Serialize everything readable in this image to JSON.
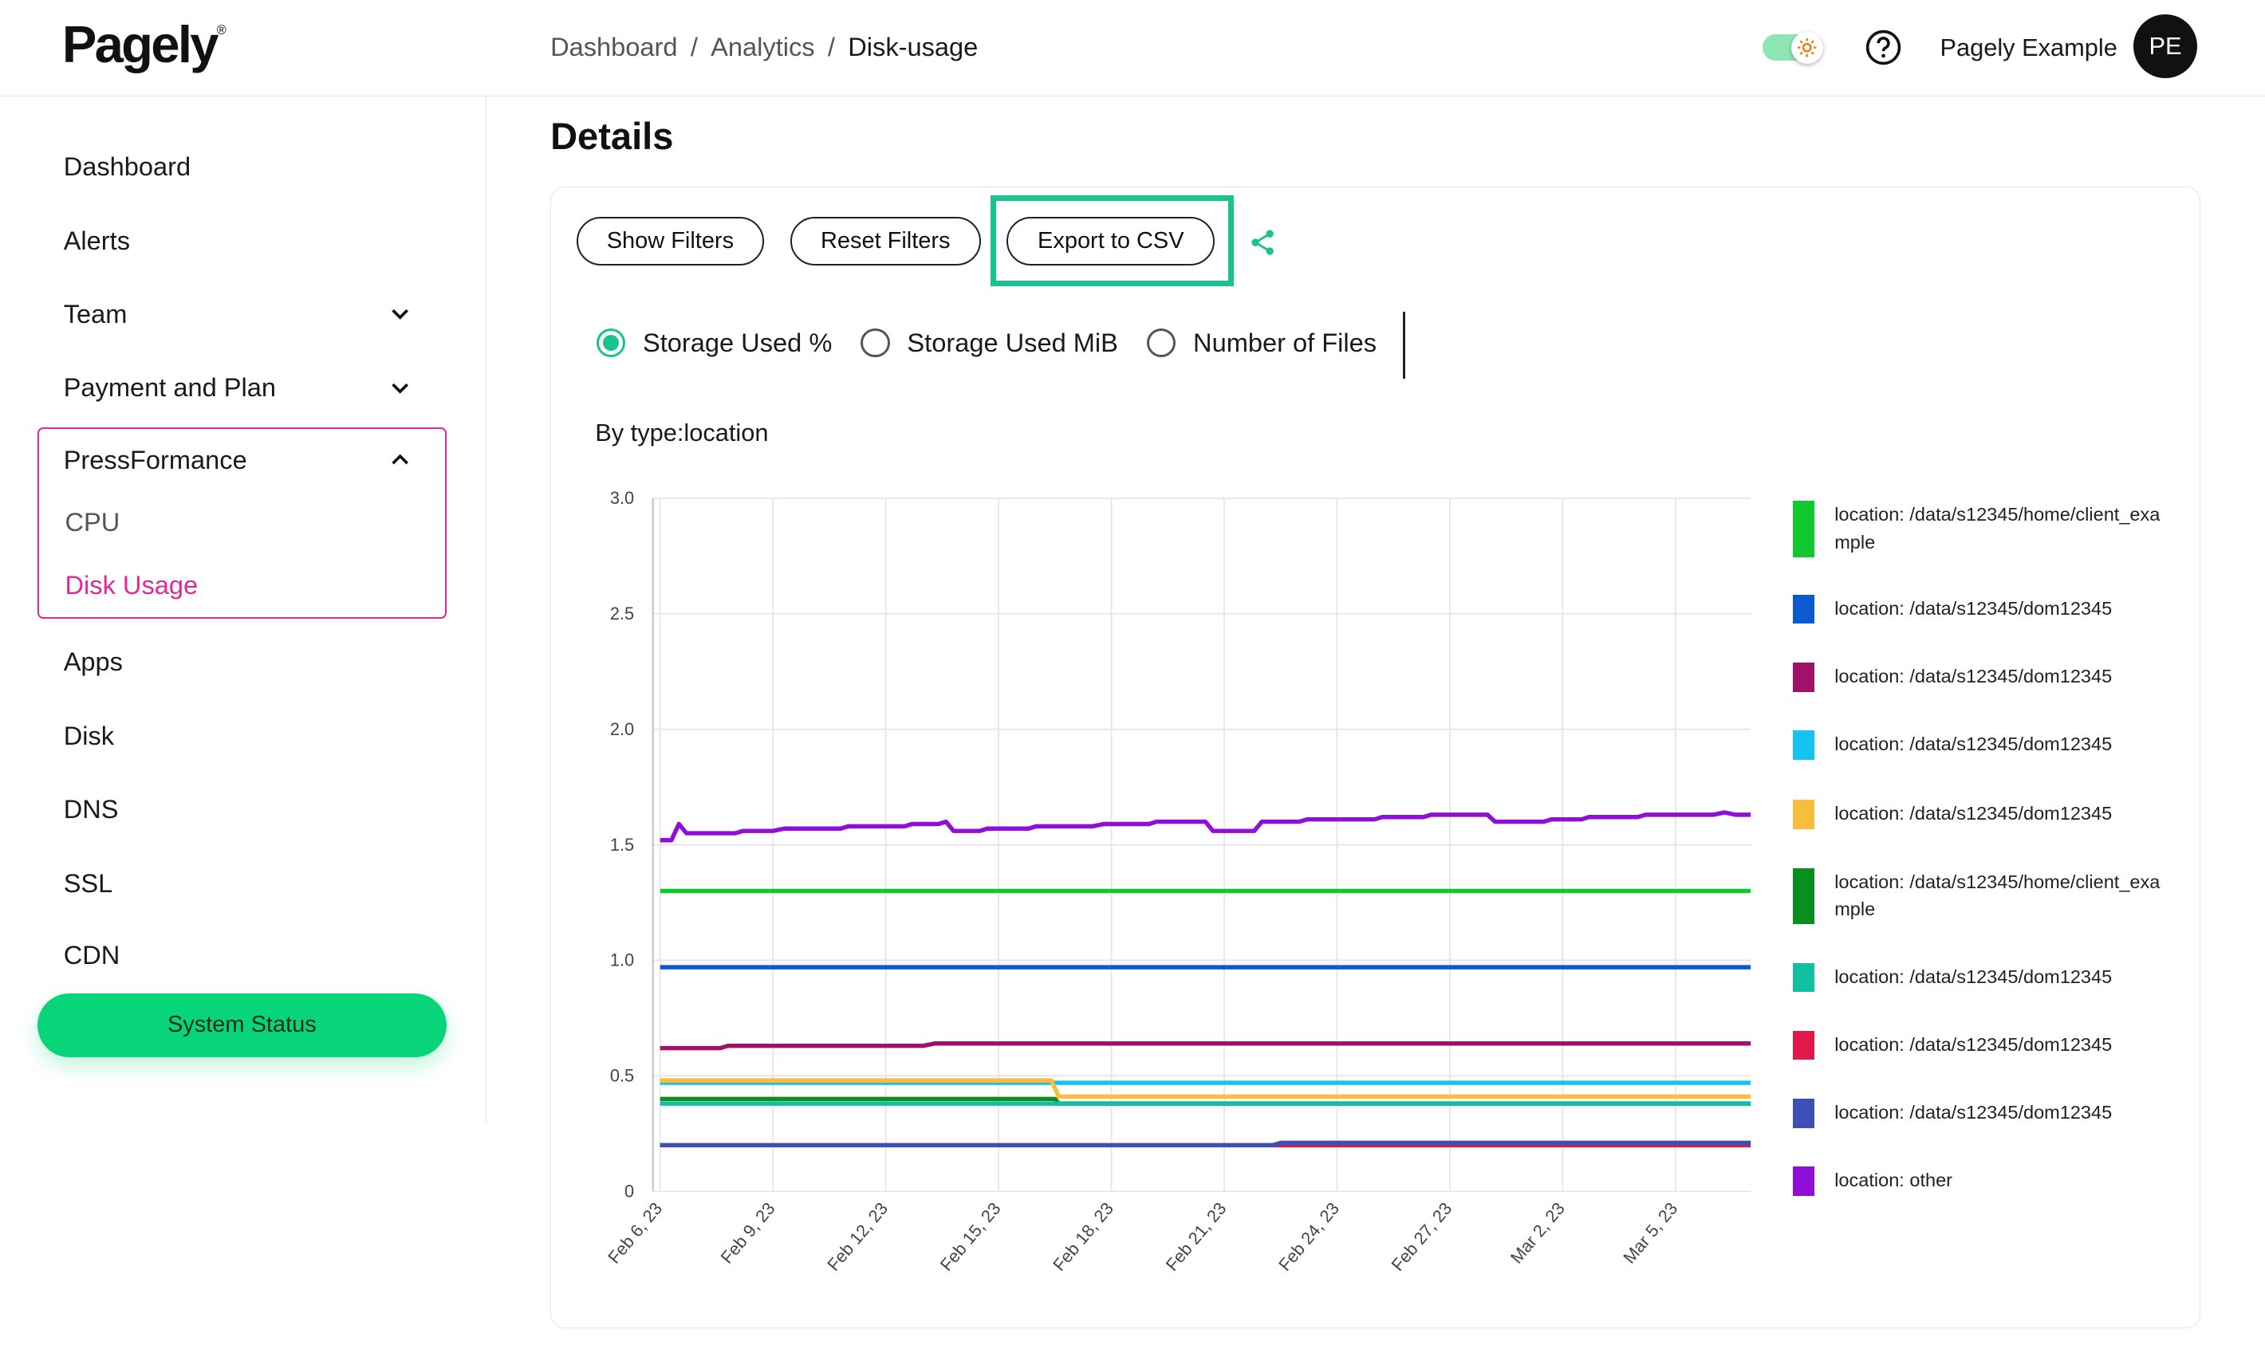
{
  "header": {
    "logo": "Pagely",
    "logo_mark": "®",
    "breadcrumb": [
      "Dashboard",
      "Analytics",
      "Disk-usage"
    ],
    "separator": "/",
    "user_name": "Pagely Example",
    "avatar_initials": "PE"
  },
  "sidebar": {
    "dashboard": "Dashboard",
    "alerts": "Alerts",
    "team": "Team",
    "payment": "Payment and Plan",
    "pressformance": "PressFormance",
    "cpu": "CPU",
    "disk_usage": "Disk Usage",
    "apps": "Apps",
    "disk": "Disk",
    "dns": "DNS",
    "ssl": "SSL",
    "cdn": "CDN",
    "system_status": "System Status"
  },
  "main": {
    "title": "Details",
    "show_filters": "Show Filters",
    "reset_filters": "Reset Filters",
    "export_csv": "Export to CSV",
    "radios": [
      "Storage Used %",
      "Storage Used MiB",
      "Number of Files"
    ],
    "selected_radio": 0
  },
  "colors": {
    "accent": "#08d47a",
    "active_nav": "#e0289a"
  },
  "chart_data": {
    "type": "line",
    "title": "By type:location",
    "ylim": [
      0,
      3.0
    ],
    "y_ticks": [
      "0",
      "0.5",
      "1.0",
      "1.5",
      "2.0",
      "2.5",
      "3.0"
    ],
    "x_ticks": [
      "Feb 6, 23",
      "Feb 9, 23",
      "Feb 12, 23",
      "Feb 15, 23",
      "Feb 18, 23",
      "Feb 21, 23",
      "Feb 24, 23",
      "Feb 27, 23",
      "Mar 2, 23",
      "Mar 5, 23"
    ],
    "grid": true,
    "legend_position": "right",
    "series": [
      {
        "name": "location: /data/s12345/home/client_example",
        "color": "#0fc92e",
        "values": [
          [
            0,
            1.3
          ],
          [
            29,
            1.3
          ]
        ]
      },
      {
        "name": "location: /data/s12345/dom12345",
        "color": "#0a5bcf",
        "values": [
          [
            0,
            0.97
          ],
          [
            29,
            0.97
          ]
        ]
      },
      {
        "name": "location: /data/s12345/dom12345",
        "color": "#a0126a",
        "values": [
          [
            0,
            0.62
          ],
          [
            1.6,
            0.62
          ],
          [
            1.8,
            0.63
          ],
          [
            7,
            0.63
          ],
          [
            7.3,
            0.64
          ],
          [
            29,
            0.64
          ]
        ]
      },
      {
        "name": "location: /data/s12345/dom12345",
        "color": "#14c3ef",
        "values": [
          [
            0,
            0.47
          ],
          [
            29,
            0.47
          ]
        ]
      },
      {
        "name": "location: /data/s12345/dom12345",
        "color": "#f7bd3b",
        "values": [
          [
            0,
            0.48
          ],
          [
            10.4,
            0.48
          ],
          [
            10.6,
            0.41
          ],
          [
            29,
            0.41
          ]
        ]
      },
      {
        "name": "location: /data/s12345/home/client_example",
        "color": "#0b8e20",
        "values": [
          [
            0,
            0.4
          ],
          [
            10.5,
            0.4
          ],
          [
            10.6,
            0.38
          ],
          [
            29,
            0.38
          ]
        ]
      },
      {
        "name": "location: /data/s12345/dom12345",
        "color": "#12bfa0",
        "values": [
          [
            0,
            0.38
          ],
          [
            29,
            0.38
          ]
        ]
      },
      {
        "name": "location: /data/s12345/dom12345",
        "color": "#e0194a",
        "values": [
          [
            0,
            0.2
          ],
          [
            29,
            0.2
          ]
        ]
      },
      {
        "name": "location: /data/s12345/dom12345",
        "color": "#3f4fb8",
        "values": [
          [
            0,
            0.2
          ],
          [
            16.3,
            0.2
          ],
          [
            16.5,
            0.21
          ],
          [
            29,
            0.21
          ]
        ]
      },
      {
        "name": "location: other",
        "color": "#8f0fd8",
        "values": [
          [
            0,
            1.52
          ],
          [
            0.3,
            1.52
          ],
          [
            0.5,
            1.59
          ],
          [
            0.7,
            1.55
          ],
          [
            2,
            1.55
          ],
          [
            2.2,
            1.56
          ],
          [
            3,
            1.56
          ],
          [
            3.3,
            1.57
          ],
          [
            4.8,
            1.57
          ],
          [
            5,
            1.58
          ],
          [
            6.5,
            1.58
          ],
          [
            6.7,
            1.59
          ],
          [
            7.4,
            1.59
          ],
          [
            7.6,
            1.6
          ],
          [
            7.8,
            1.56
          ],
          [
            8.5,
            1.56
          ],
          [
            8.7,
            1.57
          ],
          [
            9.8,
            1.57
          ],
          [
            10,
            1.58
          ],
          [
            11.5,
            1.58
          ],
          [
            11.8,
            1.59
          ],
          [
            13,
            1.59
          ],
          [
            13.2,
            1.6
          ],
          [
            14.5,
            1.6
          ],
          [
            14.7,
            1.56
          ],
          [
            15.8,
            1.56
          ],
          [
            16,
            1.6
          ],
          [
            17,
            1.6
          ],
          [
            17.2,
            1.61
          ],
          [
            19,
            1.61
          ],
          [
            19.2,
            1.62
          ],
          [
            20.3,
            1.62
          ],
          [
            20.5,
            1.63
          ],
          [
            22,
            1.63
          ],
          [
            22.2,
            1.6
          ],
          [
            23.5,
            1.6
          ],
          [
            23.7,
            1.61
          ],
          [
            24.5,
            1.61
          ],
          [
            24.7,
            1.62
          ],
          [
            26,
            1.62
          ],
          [
            26.2,
            1.63
          ],
          [
            28,
            1.63
          ],
          [
            28.3,
            1.64
          ],
          [
            28.6,
            1.63
          ],
          [
            29,
            1.63
          ]
        ]
      }
    ]
  }
}
